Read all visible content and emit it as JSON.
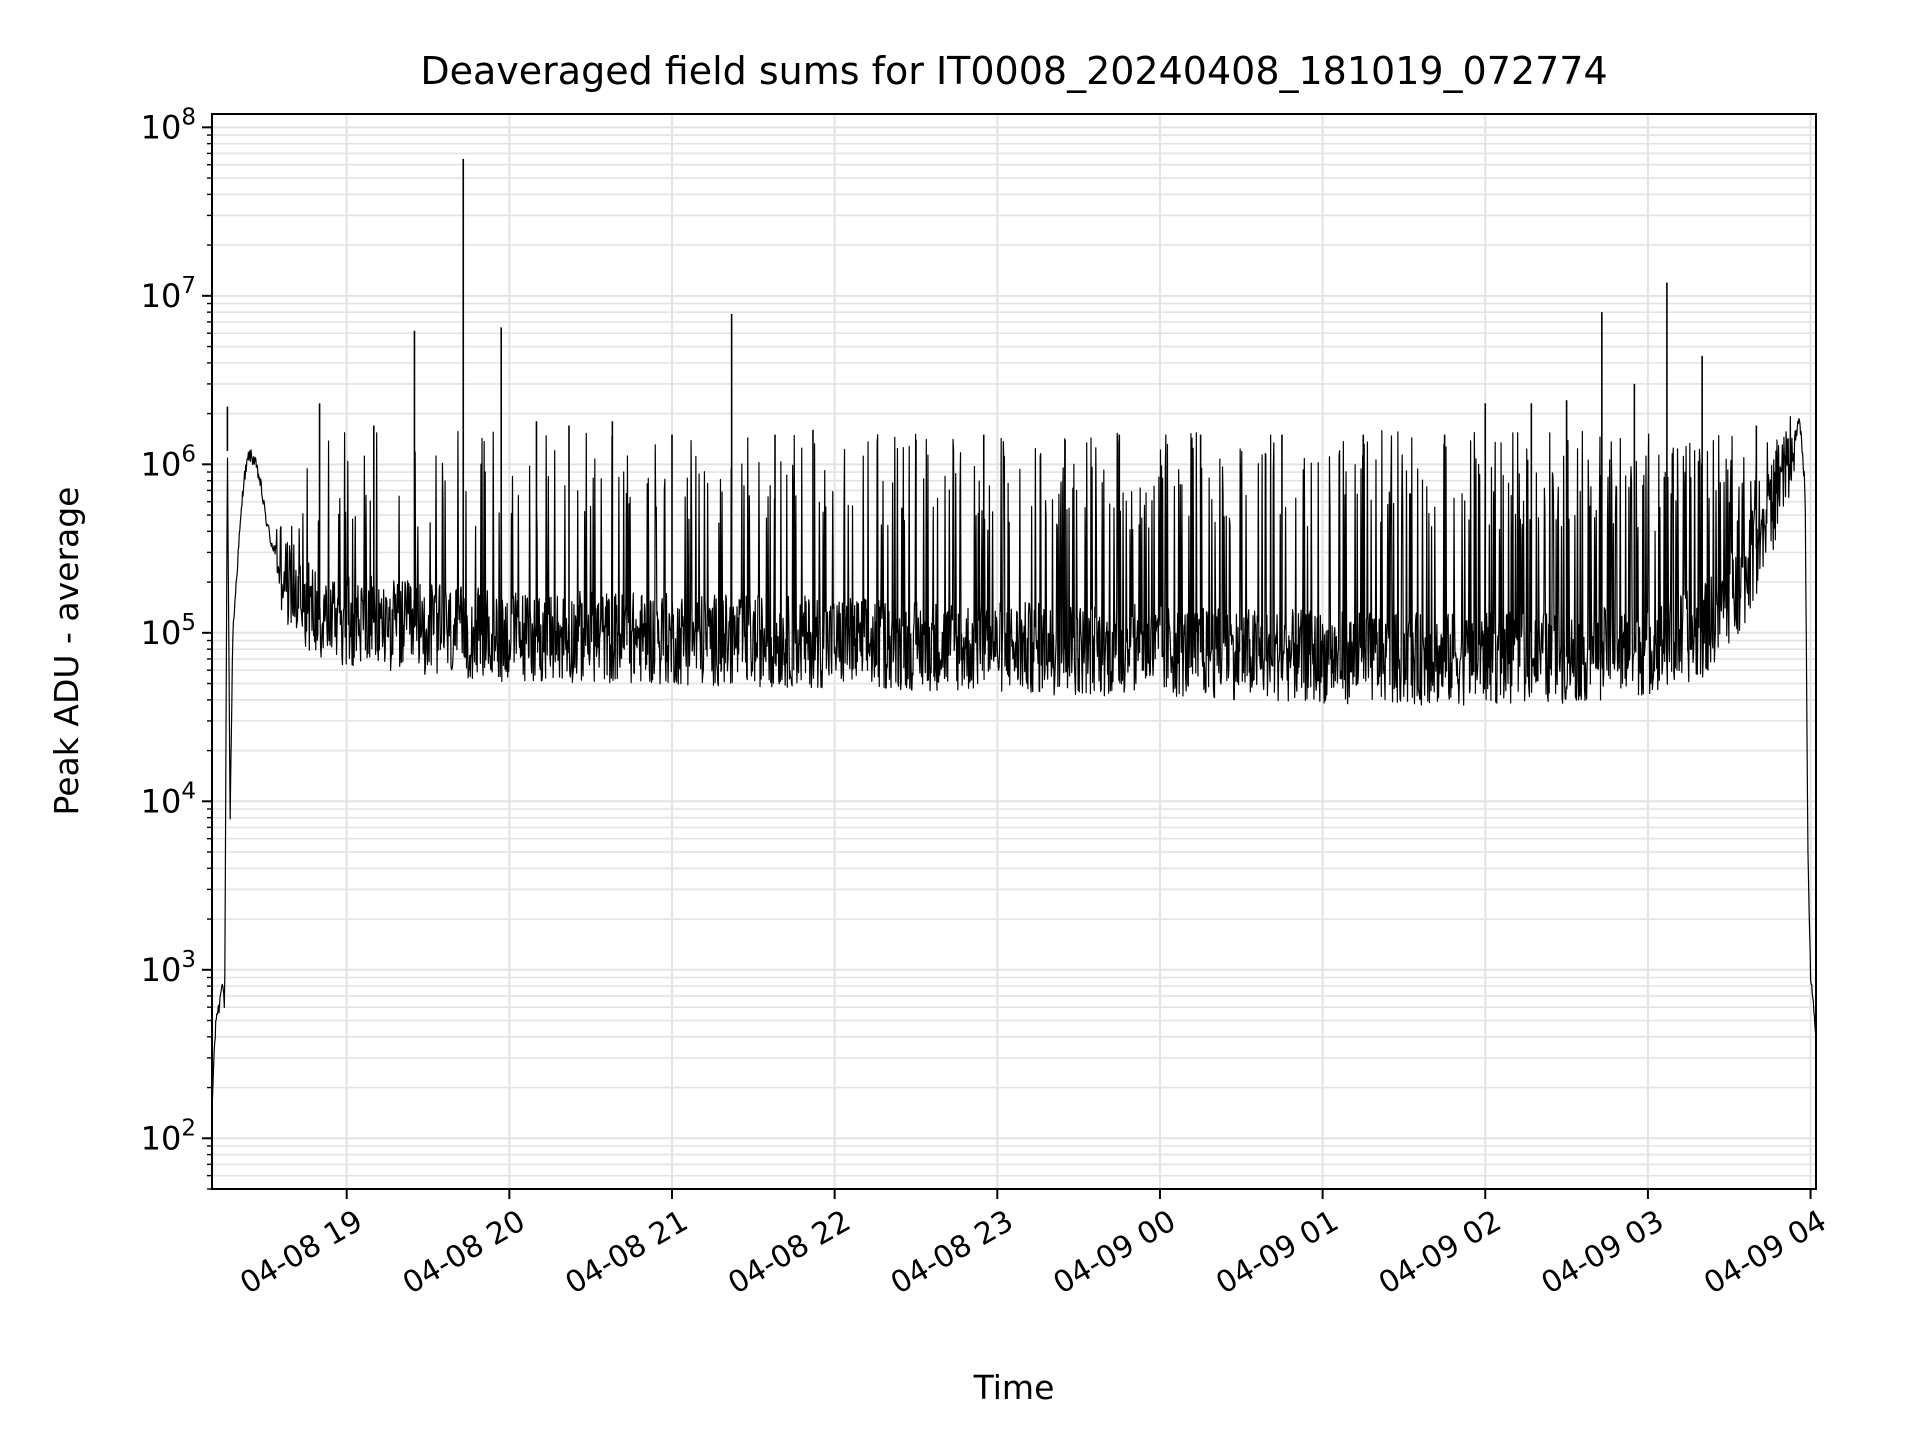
{
  "chart_data": {
    "type": "line",
    "title": "Deaveraged field sums for IT0008_20240408_181019_072774",
    "xlabel": "Time",
    "ylabel": "Peak ADU - average",
    "y_scale": "log",
    "ylim": [
      50,
      120000000
    ],
    "xlim": [
      "2024-04-08 18:10:19",
      "2024-04-09 04:02"
    ],
    "grid": true,
    "line_color": "#000000",
    "grid_color": "#e3e3e3",
    "x_ticks": [
      {
        "t": "2024-04-08 19:00",
        "label": "04-08 19"
      },
      {
        "t": "2024-04-08 20:00",
        "label": "04-08 20"
      },
      {
        "t": "2024-04-08 21:00",
        "label": "04-08 21"
      },
      {
        "t": "2024-04-08 22:00",
        "label": "04-08 22"
      },
      {
        "t": "2024-04-08 23:00",
        "label": "04-08 23"
      },
      {
        "t": "2024-04-09 00:00",
        "label": "04-09 00"
      },
      {
        "t": "2024-04-09 01:00",
        "label": "04-09 01"
      },
      {
        "t": "2024-04-09 02:00",
        "label": "04-09 02"
      },
      {
        "t": "2024-04-09 03:00",
        "label": "04-09 03"
      },
      {
        "t": "2024-04-09 04:00",
        "label": "04-09 04"
      }
    ],
    "y_ticks": [
      {
        "value": 100,
        "base": "10",
        "exp": "2"
      },
      {
        "value": 1000,
        "base": "10",
        "exp": "3"
      },
      {
        "value": 10000,
        "base": "10",
        "exp": "4"
      },
      {
        "value": 100000,
        "base": "10",
        "exp": "5"
      },
      {
        "value": 1000000,
        "base": "10",
        "exp": "6"
      },
      {
        "value": 10000000,
        "base": "10",
        "exp": "7"
      },
      {
        "value": 100000000,
        "base": "10",
        "exp": "8"
      }
    ],
    "series": [
      {
        "x": [
          "2024-04-08 18:10:19",
          "2024-04-08 18:11",
          "2024-04-08 18:12",
          "2024-04-08 18:13",
          "2024-04-08 18:14",
          "2024-04-08 18:15",
          "2024-04-08 18:16",
          "2024-04-08 18:17",
          "2024-04-08 18:18",
          "2024-04-08 18:20",
          "2024-04-08 18:22",
          "2024-04-08 18:24",
          "2024-04-08 18:26",
          "2024-04-08 18:28",
          "2024-04-08 18:30",
          "2024-04-08 18:32",
          "2024-04-08 18:34",
          "2024-04-08 18:36",
          "2024-04-08 18:38",
          "2024-04-08 18:40",
          "2024-04-08 18:45",
          "2024-04-08 18:50",
          "2024-04-08 18:55",
          "2024-04-08 19:00",
          "2024-04-08 19:10",
          "2024-04-08 19:20",
          "2024-04-08 19:30",
          "2024-04-08 19:40",
          "2024-04-08 19:50",
          "2024-04-08 20:00",
          "2024-04-08 20:30",
          "2024-04-08 21:00",
          "2024-04-08 21:30",
          "2024-04-08 22:00",
          "2024-04-08 22:30",
          "2024-04-08 23:00",
          "2024-04-08 23:30",
          "2024-04-09 00:00",
          "2024-04-09 00:30",
          "2024-04-09 01:00",
          "2024-04-09 01:30",
          "2024-04-09 02:00",
          "2024-04-09 02:30",
          "2024-04-09 03:00",
          "2024-04-09 03:20",
          "2024-04-09 03:35",
          "2024-04-09 03:45",
          "2024-04-09 03:50",
          "2024-04-09 03:54",
          "2024-04-09 03:56",
          "2024-04-09 03:57",
          "2024-04-09 03:58",
          "2024-04-09 03:59",
          "2024-04-09 04:00",
          "2024-04-09 04:01",
          "2024-04-09 04:02"
        ],
        "values": [
          140,
          300,
          550,
          600,
          900,
          600,
          1200000,
          8000,
          100000,
          300000,
          800000,
          1150000,
          1050000,
          800000,
          500000,
          350000,
          300000,
          250000,
          200000,
          180000,
          150000,
          130000,
          125000,
          120000,
          115000,
          110000,
          105000,
          100000,
          98000,
          95000,
          95000,
          92000,
          90000,
          88000,
          85000,
          82000,
          80000,
          78000,
          75000,
          72000,
          70000,
          70000,
          72000,
          80000,
          100000,
          200000,
          500000,
          900000,
          1400000,
          1800000,
          1200000,
          700000,
          5000,
          900,
          600,
          400
        ]
      }
    ],
    "spikes": [
      {
        "t": "2024-04-08 18:16",
        "value": 2200000
      },
      {
        "t": "2024-04-08 18:50",
        "value": 2300000
      },
      {
        "t": "2024-04-08 19:10",
        "value": 1700000
      },
      {
        "t": "2024-04-08 19:25",
        "value": 6200000
      },
      {
        "t": "2024-04-08 19:43",
        "value": 65000000
      },
      {
        "t": "2024-04-08 19:57",
        "value": 6500000
      },
      {
        "t": "2024-04-08 20:10",
        "value": 1800000
      },
      {
        "t": "2024-04-08 20:22",
        "value": 1700000
      },
      {
        "t": "2024-04-08 20:38",
        "value": 1800000
      },
      {
        "t": "2024-04-08 21:00",
        "value": 1500000
      },
      {
        "t": "2024-04-08 21:22",
        "value": 7800000
      },
      {
        "t": "2024-04-08 21:38",
        "value": 1500000
      },
      {
        "t": "2024-04-08 21:52",
        "value": 1600000
      },
      {
        "t": "2024-04-08 22:30",
        "value": 1400000
      },
      {
        "t": "2024-04-08 22:55",
        "value": 1500000
      },
      {
        "t": "2024-04-08 23:25",
        "value": 1400000
      },
      {
        "t": "2024-04-08 23:45",
        "value": 1500000
      },
      {
        "t": "2024-04-09 00:15",
        "value": 1500000
      },
      {
        "t": "2024-04-09 00:45",
        "value": 1500000
      },
      {
        "t": "2024-04-09 01:15",
        "value": 1500000
      },
      {
        "t": "2024-04-09 01:45",
        "value": 1500000
      },
      {
        "t": "2024-04-09 02:00",
        "value": 2300000
      },
      {
        "t": "2024-04-09 02:17",
        "value": 2300000
      },
      {
        "t": "2024-04-09 02:30",
        "value": 2400000
      },
      {
        "t": "2024-04-09 02:43",
        "value": 8000000
      },
      {
        "t": "2024-04-09 02:55",
        "value": 3000000
      },
      {
        "t": "2024-04-09 03:07",
        "value": 12000000
      },
      {
        "t": "2024-04-09 03:20",
        "value": 4400000
      },
      {
        "t": "2024-04-09 03:40",
        "value": 1700000
      }
    ]
  }
}
